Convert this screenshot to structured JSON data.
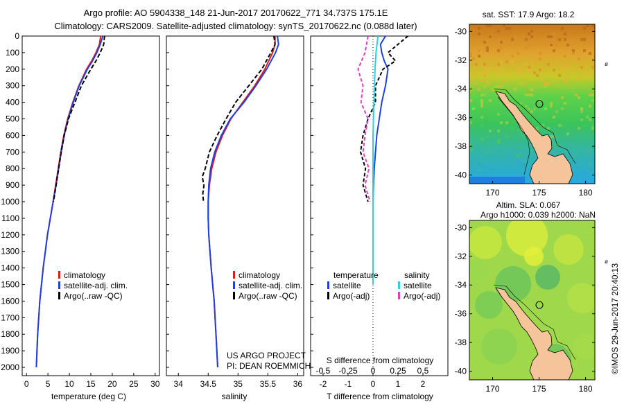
{
  "header": {
    "line1": "Argo profile: AO 5904338_148 21-Jun-2017 20170622_771 34.737S 175.1E",
    "line2": "Climatology: CARS2009. Satellite-adjusted climatology: synTS_20170622.nc (0.088d later)"
  },
  "colors": {
    "climatology": "#e31a1c",
    "satellite": "#1f3fe0",
    "argo": "#000000",
    "salinity_sat": "#22d6e6",
    "salinity_argo": "#e040c0",
    "land": "#f5c49a"
  },
  "chart_data": [
    {
      "type": "line",
      "panel": "temperature",
      "xlabel": "temperature (deg C)",
      "ylim": [
        2050,
        0
      ],
      "xlim": [
        -1,
        31
      ],
      "x_ticks": [
        "0",
        "5",
        "10",
        "15",
        "20",
        "25",
        "30"
      ],
      "y_ticks": [
        "0",
        "100",
        "200",
        "300",
        "400",
        "500",
        "600",
        "700",
        "800",
        "900",
        "1000",
        "1100",
        "1200",
        "1300",
        "1400",
        "1500",
        "1600",
        "1700",
        "1800",
        "1900",
        "2000"
      ],
      "legend": [
        "climatology",
        "satellite-adj. clim.",
        "Argo(..raw -QC)"
      ],
      "series": [
        {
          "name": "climatology",
          "depth": [
            0,
            50,
            100,
            150,
            200,
            300,
            400,
            500,
            600,
            700,
            800,
            900,
            1000,
            1200,
            1400,
            1600,
            1800,
            2000
          ],
          "values": [
            17.3,
            17.0,
            16.2,
            15.2,
            14.0,
            12.2,
            10.8,
            9.6,
            8.7,
            8.0,
            7.4,
            6.8,
            6.2,
            4.9,
            3.9,
            3.1,
            2.6,
            2.3
          ]
        },
        {
          "name": "satellite-adj. clim.",
          "depth": [
            0,
            50,
            100,
            150,
            200,
            300,
            400,
            500,
            600,
            700,
            800,
            900,
            1000,
            1200,
            1400,
            1600,
            1800,
            2000
          ],
          "values": [
            17.8,
            17.2,
            16.4,
            15.4,
            14.2,
            12.3,
            10.9,
            9.7,
            8.8,
            8.1,
            7.5,
            6.9,
            6.2,
            4.9,
            3.9,
            3.1,
            2.6,
            2.3
          ]
        },
        {
          "name": "Argo(..raw -QC)",
          "depth": [
            0,
            50,
            100,
            150,
            200,
            300,
            400,
            500,
            600,
            700,
            800,
            900,
            1000
          ],
          "values": [
            18.2,
            18.0,
            17.2,
            16.2,
            15.0,
            12.8,
            11.3,
            9.8,
            8.8,
            8.1,
            7.5,
            6.9,
            6.3
          ]
        }
      ]
    },
    {
      "type": "line",
      "panel": "salinity",
      "xlabel": "salinity",
      "ylim": [
        2050,
        0
      ],
      "xlim": [
        33.8,
        36.1
      ],
      "x_ticks": [
        "34",
        "34.5",
        "35",
        "35.5",
        "36"
      ],
      "legend": [
        "climatology",
        "satellite-adj. clim.",
        "Argo(..raw -QC)"
      ],
      "annotation": [
        "US ARGO PROJECT",
        "PI: DEAN ROEMMICH"
      ],
      "series": [
        {
          "name": "climatology",
          "depth": [
            0,
            50,
            100,
            200,
            300,
            400,
            500,
            600,
            700,
            800,
            900,
            1000,
            1100,
            1200,
            1400,
            1600,
            1800,
            2000
          ],
          "values": [
            35.62,
            35.62,
            35.58,
            35.45,
            35.28,
            35.08,
            34.88,
            34.74,
            34.63,
            34.56,
            34.52,
            34.5,
            34.5,
            34.51,
            34.55,
            34.6,
            34.63,
            34.66
          ]
        },
        {
          "name": "satellite-adj. clim.",
          "depth": [
            0,
            50,
            100,
            200,
            300,
            400,
            500,
            600,
            700,
            800,
            900,
            1000,
            1100,
            1200,
            1400,
            1600,
            1800,
            2000
          ],
          "values": [
            35.66,
            35.68,
            35.63,
            35.48,
            35.3,
            35.1,
            34.87,
            34.72,
            34.61,
            34.54,
            34.51,
            34.5,
            34.5,
            34.51,
            34.55,
            34.6,
            34.63,
            34.66
          ]
        },
        {
          "name": "Argo(..raw -QC)",
          "depth": [
            0,
            50,
            100,
            200,
            300,
            400,
            500,
            600,
            700,
            800,
            850,
            900,
            950,
            1000
          ],
          "values": [
            35.6,
            35.62,
            35.55,
            35.4,
            35.18,
            34.96,
            34.8,
            34.65,
            34.52,
            34.45,
            34.4,
            34.43,
            34.41,
            34.42
          ]
        }
      ]
    },
    {
      "type": "line",
      "panel": "difference",
      "xlabel": "T difference from climatology",
      "xlabel2": "S difference from climatology",
      "t_ticks": [
        "-2",
        "-1",
        "0",
        "1",
        "2"
      ],
      "s_ticks": [
        "-0.5",
        "-0.25",
        "0",
        "0.25",
        "0.5"
      ],
      "legend_headers": [
        "temperature",
        "salinity"
      ],
      "legend": [
        "satellite",
        "Argo(-adj)",
        "satellite",
        "Argo(-adj)"
      ],
      "series": [
        {
          "name": "satellite",
          "depth": [
            0,
            50,
            100,
            150,
            200,
            300,
            400,
            500,
            600,
            700,
            800,
            900,
            1000,
            1200,
            1500
          ],
          "values": [
            0.5,
            0.3,
            0.35,
            0.45,
            0.6,
            0.5,
            0.35,
            0.25,
            0.15,
            0.1,
            0.05,
            0.02,
            0.0,
            0.0,
            0.0
          ]
        },
        {
          "name": "Argo(-adj)",
          "depth": [
            0,
            50,
            100,
            150,
            200,
            300,
            400,
            500,
            600,
            700,
            800,
            900,
            1000
          ],
          "values": [
            1.4,
            1.0,
            0.6,
            0.9,
            0.4,
            0.1,
            0.1,
            -0.2,
            -0.4,
            -0.5,
            -0.3,
            -0.4,
            -0.2
          ]
        },
        {
          "name": "satellite",
          "depth": [
            0,
            100,
            200,
            400,
            600,
            800,
            1000,
            1200,
            1500
          ],
          "values": [
            0.05,
            0.03,
            0.02,
            0.01,
            0.0,
            0.0,
            0.0,
            0.0,
            0.0
          ]
        },
        {
          "name": "Argo(-adj)",
          "depth": [
            0,
            100,
            200,
            300,
            400,
            500,
            600,
            700,
            800,
            900,
            1000
          ],
          "values": [
            -0.05,
            -0.08,
            -0.15,
            -0.1,
            -0.12,
            -0.05,
            -0.08,
            -0.1,
            -0.04,
            -0.08,
            -0.03
          ]
        }
      ]
    },
    {
      "type": "heatmap",
      "panel": "sst-map",
      "title": "sat. SST: 17.9 Argo: 18.2",
      "x_ticks": [
        "170",
        "175",
        "180"
      ],
      "y_ticks": [
        "-30",
        "-32",
        "-34",
        "-36",
        "-38",
        "-40"
      ],
      "float_position": {
        "lon": 175.1,
        "lat": -34.737
      }
    },
    {
      "type": "heatmap",
      "panel": "sla-map",
      "title": "Altim. SLA: 0.067",
      "subtitle": "Argo h1000: 0.039 h2000: NaN",
      "x_ticks": [
        "170",
        "175",
        "180"
      ],
      "y_ticks": [
        "-30",
        "-32",
        "-34",
        "-36",
        "-38",
        "-40"
      ],
      "float_position": {
        "lon": 175.1,
        "lat": -34.737
      }
    }
  ],
  "footer": {
    "credit": "©IMOS 29-Jun-2017 20:40:13"
  }
}
